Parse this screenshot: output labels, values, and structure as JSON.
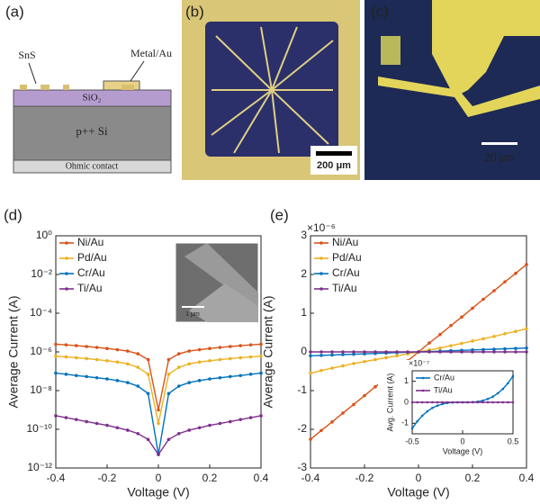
{
  "panels": {
    "a": {
      "label": "(a)",
      "texts": [
        "SnS",
        "Metal/Au",
        "SiO₂",
        "p++ Si",
        "Ohmic contact"
      ]
    },
    "b": {
      "label": "(b)",
      "scale": "200 μm"
    },
    "c": {
      "label": "(c)",
      "scale": "20 μm"
    },
    "d": {
      "label": "(d)",
      "inset_scale": "1 μm"
    },
    "e": {
      "label": "(e)"
    }
  },
  "chart_data": [
    {
      "type": "line",
      "x_label": "Voltage (V)",
      "y_label": "Average Current (A)",
      "log_y": true,
      "legend": "upper-left",
      "xlim": [
        -0.4,
        0.4
      ],
      "xticks": [
        -0.4,
        -0.2,
        0,
        0.2,
        0.4
      ],
      "ylim": [
        1e-12,
        1
      ],
      "yticks": [
        {
          "value": 1e-12,
          "label": "10⁻¹²"
        },
        {
          "value": 1e-10,
          "label": "10⁻¹⁰"
        },
        {
          "value": 1e-08,
          "label": "10⁻⁸"
        },
        {
          "value": 1e-06,
          "label": "10⁻⁶"
        },
        {
          "value": 0.0001,
          "label": "10⁻⁴"
        },
        {
          "value": 0.01,
          "label": "10⁻²"
        },
        {
          "value": 1,
          "label": "10⁰"
        }
      ],
      "x": [
        -0.4,
        -0.36,
        -0.32,
        -0.28,
        -0.24,
        -0.2,
        -0.16,
        -0.12,
        -0.08,
        -0.04,
        0,
        0.04,
        0.08,
        0.12,
        0.16,
        0.2,
        0.24,
        0.28,
        0.32,
        0.36,
        0.4
      ],
      "series": [
        {
          "name": "Ni/Au",
          "color": "#d95319",
          "values": [
            2.5e-06,
            2.3e-06,
            2.1e-06,
            1.9e-06,
            1.7e-06,
            1.5e-06,
            1.3e-06,
            1.1e-06,
            8e-07,
            4e-07,
            1e-09,
            4e-07,
            8e-07,
            1.1e-06,
            1.3e-06,
            1.5e-06,
            1.7e-06,
            1.9e-06,
            2.1e-06,
            2.3e-06,
            2.5e-06
          ]
        },
        {
          "name": "Pd/Au",
          "color": "#edb120",
          "values": [
            6e-07,
            5.5e-07,
            5e-07,
            4.5e-07,
            4e-07,
            3.5e-07,
            3e-07,
            2.4e-07,
            1.6e-07,
            7e-08,
            2e-10,
            7e-08,
            1.6e-07,
            2.4e-07,
            3e-07,
            3.5e-07,
            4e-07,
            4.5e-07,
            5e-07,
            5.5e-07,
            6e-07
          ]
        },
        {
          "name": "Cr/Au",
          "color": "#0072bd",
          "values": [
            8e-08,
            7e-08,
            6e-08,
            5.3e-08,
            4.6e-08,
            4e-08,
            3.3e-08,
            2.6e-08,
            1.7e-08,
            7e-09,
            5e-12,
            7e-09,
            1.7e-08,
            2.6e-08,
            3.3e-08,
            4e-08,
            4.6e-08,
            5.3e-08,
            6e-08,
            7e-08,
            8e-08
          ]
        },
        {
          "name": "Ti/Au",
          "color": "#7e2f8e",
          "values": [
            5e-10,
            4e-10,
            3.2e-10,
            2.5e-10,
            2e-10,
            1.6e-10,
            1.2e-10,
            9e-11,
            6e-11,
            3e-11,
            5e-12,
            3e-11,
            6e-11,
            9e-11,
            1.2e-10,
            1.6e-10,
            2e-10,
            2.5e-10,
            3.2e-10,
            4e-10,
            5e-10
          ]
        }
      ]
    },
    {
      "type": "line",
      "x_label": "Voltage (V)",
      "y_label": "Average Current (A)",
      "y_multiplier": "×10⁻⁶",
      "legend": "upper-left",
      "xlim": [
        -0.4,
        0.4
      ],
      "xticks": [
        -0.4,
        -0.2,
        0,
        0.2,
        0.4
      ],
      "ylim": [
        -3,
        3
      ],
      "yticks": [
        -3,
        -2,
        -1,
        0,
        1,
        2,
        3
      ],
      "x": [
        -0.4,
        -0.36,
        -0.32,
        -0.28,
        -0.24,
        -0.2,
        -0.16,
        -0.12,
        -0.08,
        -0.04,
        0,
        0.04,
        0.08,
        0.12,
        0.16,
        0.2,
        0.24,
        0.28,
        0.32,
        0.36,
        0.4
      ],
      "series": [
        {
          "name": "Ni/Au",
          "color": "#d95319",
          "values": [
            -2.26,
            -2.03,
            -1.81,
            -1.58,
            -1.36,
            -1.13,
            -0.9,
            -0.68,
            -0.45,
            -0.23,
            0,
            0.23,
            0.45,
            0.68,
            0.9,
            1.13,
            1.36,
            1.58,
            1.81,
            2.03,
            2.26
          ]
        },
        {
          "name": "Pd/Au",
          "color": "#edb120",
          "values": [
            -0.55,
            -0.48,
            -0.42,
            -0.36,
            -0.3,
            -0.25,
            -0.2,
            -0.15,
            -0.1,
            -0.05,
            0,
            0.05,
            0.1,
            0.16,
            0.22,
            0.28,
            0.34,
            0.4,
            0.47,
            0.53,
            0.6
          ]
        },
        {
          "name": "Cr/Au",
          "color": "#0072bd",
          "values": [
            -0.1,
            -0.09,
            -0.08,
            -0.07,
            -0.06,
            -0.05,
            -0.04,
            -0.03,
            -0.02,
            -0.01,
            0,
            0.01,
            0.02,
            0.03,
            0.04,
            0.05,
            0.06,
            0.07,
            0.08,
            0.09,
            0.1
          ]
        },
        {
          "name": "Ti/Au",
          "color": "#7e2f8e",
          "values": [
            0,
            0,
            0,
            0,
            0,
            0,
            0,
            0,
            0,
            0,
            0,
            0,
            0,
            0,
            0,
            0,
            0,
            0,
            0,
            0,
            0
          ]
        }
      ]
    },
    {
      "type": "line",
      "x_label": "Voltage (V)",
      "y_label": "Avg. Current (A)",
      "y_multiplier": "×10⁻⁷",
      "legend": "upper-left",
      "xlim": [
        -0.5,
        0.5
      ],
      "xticks": [
        -0.5,
        0,
        0.5
      ],
      "ylim": [
        -1.5,
        1.5
      ],
      "yticks": [
        -1,
        0,
        1
      ],
      "x": [
        -0.5,
        -0.45,
        -0.4,
        -0.35,
        -0.3,
        -0.25,
        -0.2,
        -0.15,
        -0.1,
        -0.05,
        0,
        0.05,
        0.1,
        0.15,
        0.2,
        0.25,
        0.3,
        0.35,
        0.4,
        0.45,
        0.5
      ],
      "series": [
        {
          "name": "Cr/Au",
          "color": "#0072bd",
          "values": [
            -1.25,
            -0.91,
            -0.64,
            -0.43,
            -0.27,
            -0.16,
            -0.08,
            -0.03,
            -0.01,
            0,
            0,
            0,
            0.01,
            0.03,
            0.08,
            0.16,
            0.27,
            0.43,
            0.64,
            0.91,
            1.25
          ]
        },
        {
          "name": "Ti/Au",
          "color": "#7e2f8e",
          "values": [
            0,
            0,
            0,
            0,
            0,
            0,
            0,
            0,
            0,
            0,
            0,
            0,
            0,
            0,
            0,
            0,
            0,
            0,
            0,
            0,
            0
          ]
        }
      ]
    }
  ]
}
